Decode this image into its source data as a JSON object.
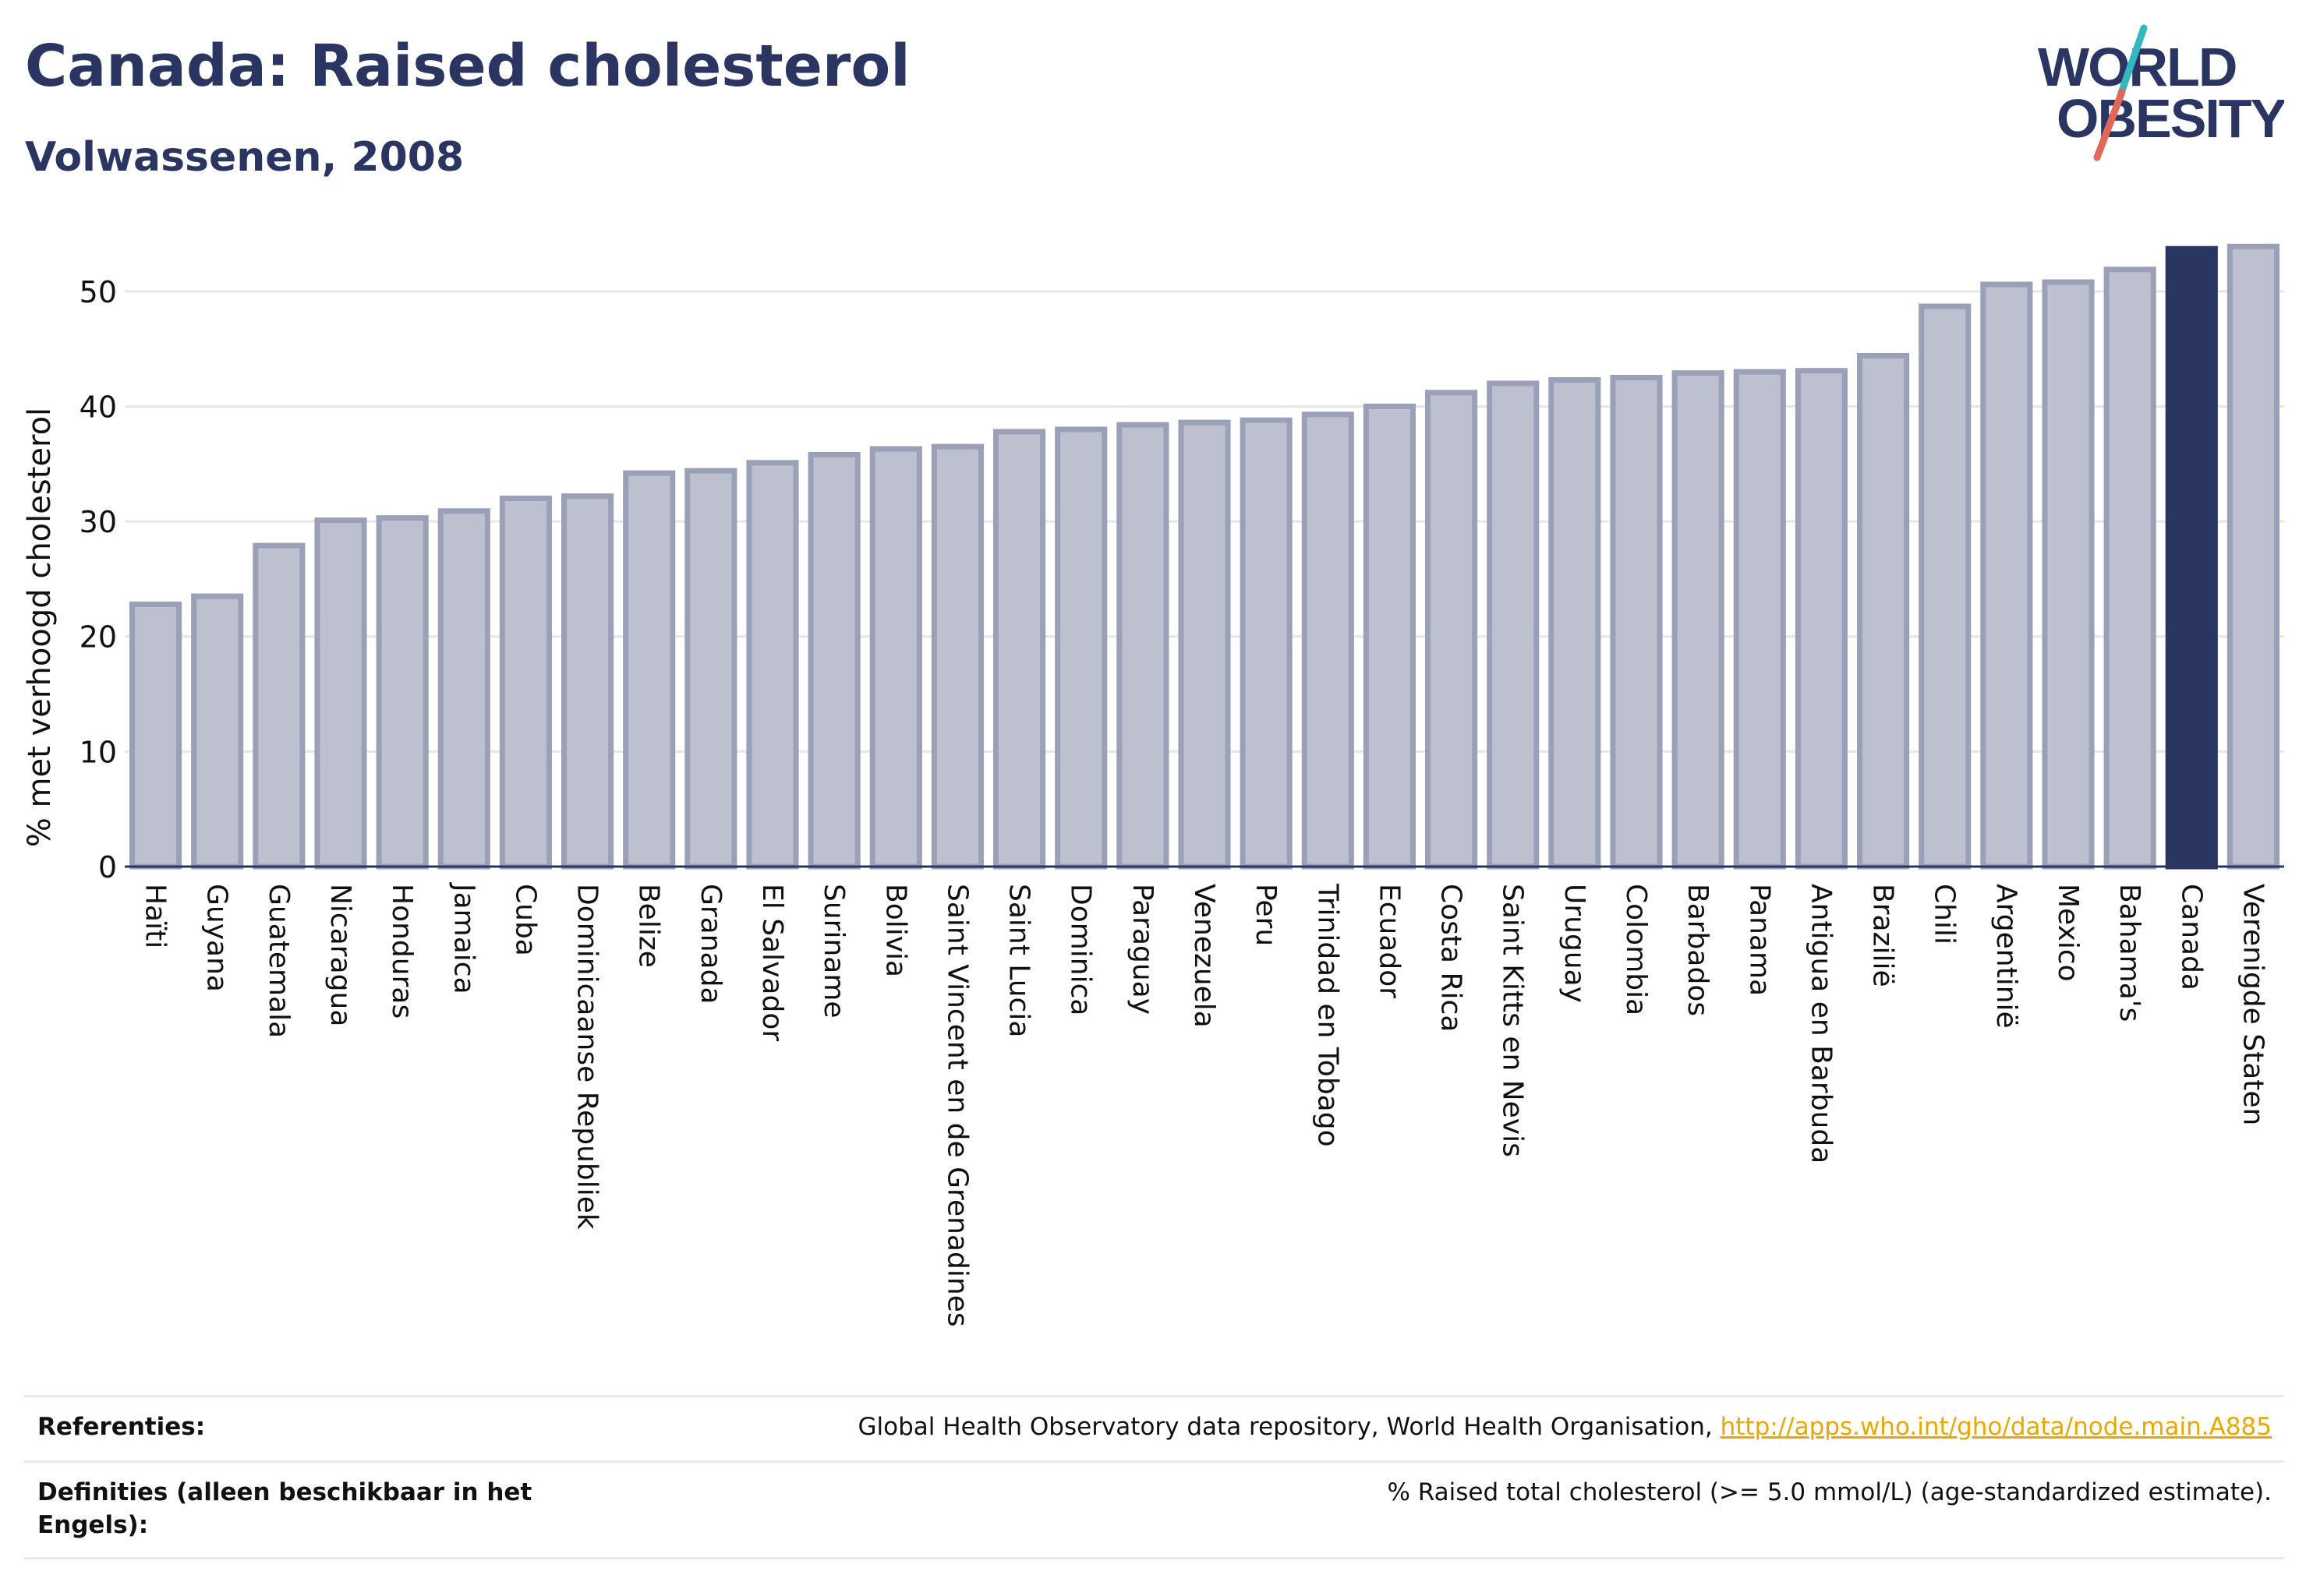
{
  "header": {
    "title": "Canada: Raised cholesterol",
    "subtitle": "Volwassenen, 2008"
  },
  "logo": {
    "line1": "WORLD",
    "line2": "OBESITY",
    "colors": {
      "text": "#2b3561",
      "slash_teal": "#35b8bd",
      "slash_red": "#e2665a"
    }
  },
  "colors": {
    "bar_default": "#bdc0cf",
    "bar_outline": "#9aa0b8",
    "bar_highlight": "#2b3561",
    "grid": "#e6e6ea",
    "axis": "#2b3561"
  },
  "chart_data": {
    "type": "bar",
    "ylabel": "% met verhoogd cholesterol",
    "xlabel": "",
    "ylim": [
      0,
      55
    ],
    "yticks": [
      0,
      10,
      20,
      30,
      40,
      50
    ],
    "grid": true,
    "highlight": "Canada",
    "categories": [
      "Haïti",
      "Guyana",
      "Guatemala",
      "Nicaragua",
      "Honduras",
      "Jamaica",
      "Cuba",
      "Dominicaanse Republiek",
      "Belize",
      "Granada",
      "El Salvador",
      "Suriname",
      "Bolivia",
      "Saint Vincent en de Grenadines",
      "Saint Lucia",
      "Dominica",
      "Paraguay",
      "Venezuela",
      "Peru",
      "Trinidad en Tobago",
      "Ecuador",
      "Costa Rica",
      "Saint Kitts en Nevis",
      "Uruguay",
      "Colombia",
      "Barbados",
      "Panama",
      "Antigua en Barbuda",
      "Brazilië",
      "Chili",
      "Argentinië",
      "Mexico",
      "Bahama's",
      "Canada",
      "Verenigde Staten"
    ],
    "values": [
      22.8,
      23.5,
      27.9,
      30.1,
      30.3,
      30.9,
      32.0,
      32.2,
      34.2,
      34.4,
      35.1,
      35.8,
      36.3,
      36.5,
      37.8,
      38.0,
      38.4,
      38.6,
      38.8,
      39.3,
      40.0,
      41.2,
      42.0,
      42.3,
      42.5,
      42.9,
      43.0,
      43.1,
      44.4,
      48.7,
      50.6,
      50.8,
      51.9,
      53.7,
      53.9
    ]
  },
  "footer": {
    "references_label": "Referenties:",
    "references_text": "Global Health Observatory data repository, World Health Organisation, ",
    "references_link": "http://apps.who.int/gho/data/node.main.A885",
    "definitions_label": "Definities (alleen beschikbaar in het Engels):",
    "definitions_text": "% Raised total cholesterol (>= 5.0 mmol/L) (age-standardized estimate)."
  }
}
